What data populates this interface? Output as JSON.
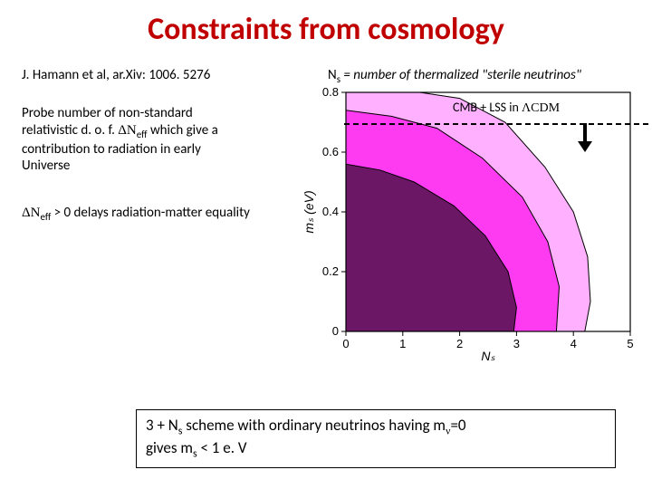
{
  "title": "Constraints from cosmology",
  "citation": "J. Hamann et al, ar.Xiv: 1006. 5276",
  "ns_definition_prefix": "N",
  "ns_definition_sub": "s",
  "ns_definition_rest": " = number of thermalized \"sterile neutrinos\"",
  "probe_text": "Probe number of non-standard relativistic d. o. f.  ΔNeff which give a contribution to radiation in early Universe",
  "probe_l1": "Probe number of non-standard",
  "probe_l2a": "relativistic d. o. f.  ",
  "probe_dn": "ΔN",
  "probe_eff": "eff",
  "probe_l2b": " which give a",
  "probe_l3": "contribution to radiation in early",
  "probe_l4": "Universe",
  "delay_dn": " ΔN",
  "delay_eff": "eff",
  "delay_rest": " > 0 delays radiation-matter equality",
  "legend_text": "CMB + LSS in ΛCDM",
  "legend_prefix": "CMB + LSS in ",
  "legend_lcdm": "ΛCDM",
  "bottom_l1a": "3 + N",
  "bottom_l1sub": "s",
  "bottom_l1b": " scheme with ordinary neutrinos having m",
  "bottom_nu": "ν",
  "bottom_l1c": "=0",
  "bottom_l2a": "gives  m",
  "bottom_l2sub": "s",
  "bottom_l2b": " < 1 e. V",
  "chart": {
    "type": "contour",
    "xlim": [
      0,
      5
    ],
    "ylim": [
      0,
      0.8
    ],
    "xticks": [
      0,
      1,
      2,
      3,
      4,
      5
    ],
    "yticks": [
      0,
      0.2,
      0.4,
      0.6,
      0.8
    ],
    "xlabel": "Nₛ",
    "ylabel": "mₛ  (eV)",
    "label_fontsize": 14,
    "tick_fontsize": 13,
    "axis_color": "#000000",
    "background_color": "#ffffff",
    "plot_area_bg": "#ffffff",
    "contours": [
      {
        "level": "outer",
        "fill": "#ffb0ff",
        "stroke": "#000000"
      },
      {
        "level": "middle",
        "fill": "#ff3bf2",
        "stroke": "#000000"
      },
      {
        "level": "inner",
        "fill": "#6b1766",
        "stroke": "#000000"
      }
    ],
    "outer_pts_data": [
      [
        0,
        0.8
      ],
      [
        1.3,
        0.8
      ],
      [
        2.0,
        0.78
      ],
      [
        2.8,
        0.7
      ],
      [
        3.5,
        0.55
      ],
      [
        4.0,
        0.4
      ],
      [
        4.25,
        0.25
      ],
      [
        4.3,
        0.1
      ],
      [
        4.2,
        0.0
      ],
      [
        0,
        0.0
      ]
    ],
    "middle_pts_data": [
      [
        0,
        0.74
      ],
      [
        0.8,
        0.72
      ],
      [
        1.6,
        0.68
      ],
      [
        2.4,
        0.58
      ],
      [
        3.1,
        0.45
      ],
      [
        3.55,
        0.3
      ],
      [
        3.75,
        0.15
      ],
      [
        3.7,
        0.0
      ],
      [
        0,
        0.0
      ]
    ],
    "inner_pts_data": [
      [
        0,
        0.56
      ],
      [
        0.6,
        0.54
      ],
      [
        1.2,
        0.5
      ],
      [
        1.9,
        0.42
      ],
      [
        2.45,
        0.32
      ],
      [
        2.85,
        0.2
      ],
      [
        3.0,
        0.08
      ],
      [
        2.95,
        0.0
      ],
      [
        0,
        0.0
      ]
    ]
  }
}
